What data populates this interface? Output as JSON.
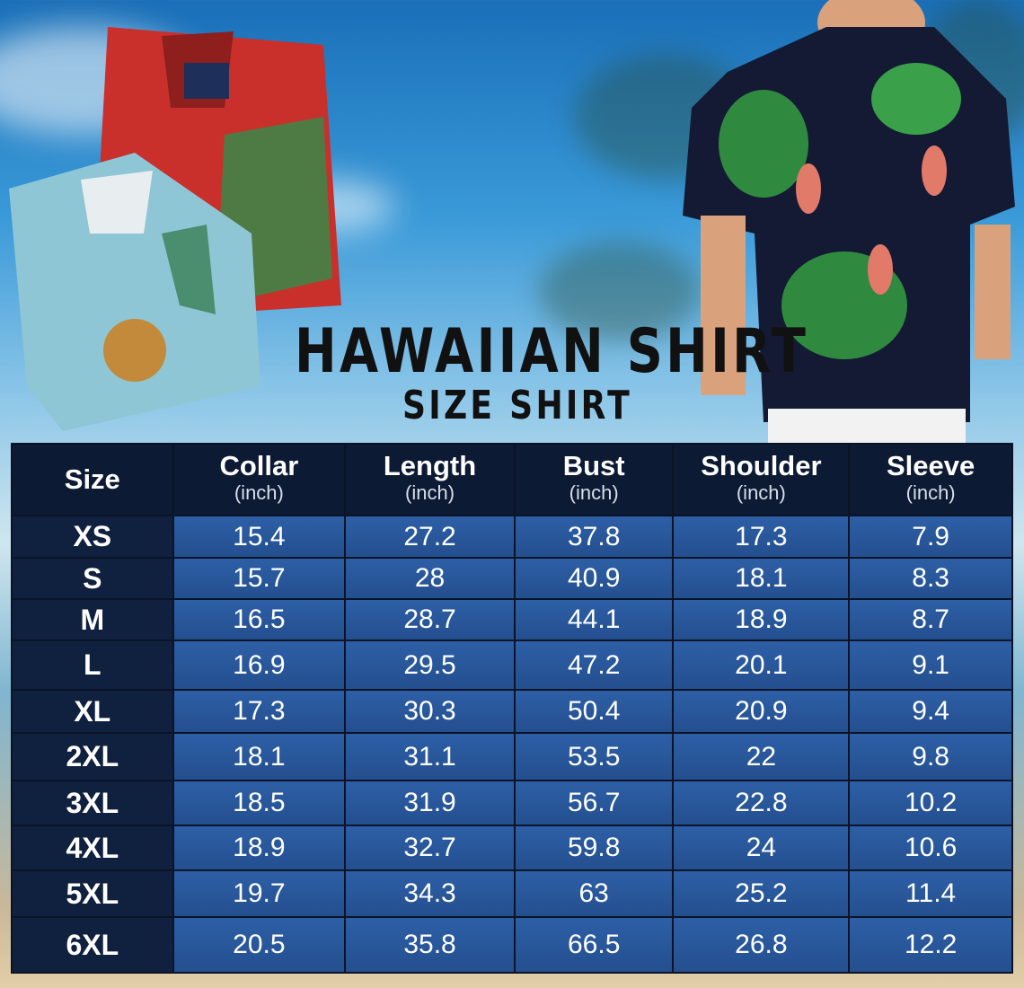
{
  "title": "HAWAIIAN SHIRT",
  "subtitle": "SIZE SHIRT",
  "colors": {
    "header": "#0d1a34",
    "size_column": "#10203f",
    "cells": "#2d5fa6"
  },
  "table": {
    "headers": [
      {
        "label": "Size",
        "unit": ""
      },
      {
        "label": "Collar",
        "unit": "(inch)"
      },
      {
        "label": "Length",
        "unit": "(inch)"
      },
      {
        "label": "Bust",
        "unit": "(inch)"
      },
      {
        "label": "Shoulder",
        "unit": "(inch)"
      },
      {
        "label": "Sleeve",
        "unit": "(inch)"
      }
    ],
    "rows": [
      [
        "XS",
        "15.4",
        "27.2",
        "37.8",
        "17.3",
        "7.9"
      ],
      [
        "S",
        "15.7",
        "28",
        "40.9",
        "18.1",
        "8.3"
      ],
      [
        "M",
        "16.5",
        "28.7",
        "44.1",
        "18.9",
        "8.7"
      ],
      [
        "L",
        "16.9",
        "29.5",
        "47.2",
        "20.1",
        "9.1"
      ],
      [
        "XL",
        "17.3",
        "30.3",
        "50.4",
        "20.9",
        "9.4"
      ],
      [
        "2XL",
        "18.1",
        "31.1",
        "53.5",
        "22",
        "9.8"
      ],
      [
        "3XL",
        "18.5",
        "31.9",
        "56.7",
        "22.8",
        "10.2"
      ],
      [
        "4XL",
        "18.9",
        "32.7",
        "59.8",
        "24",
        "10.6"
      ],
      [
        "5XL",
        "19.7",
        "34.3",
        "63",
        "25.2",
        "11.4"
      ],
      [
        "6XL",
        "20.5",
        "35.8",
        "66.5",
        "26.8",
        "12.2"
      ]
    ]
  }
}
